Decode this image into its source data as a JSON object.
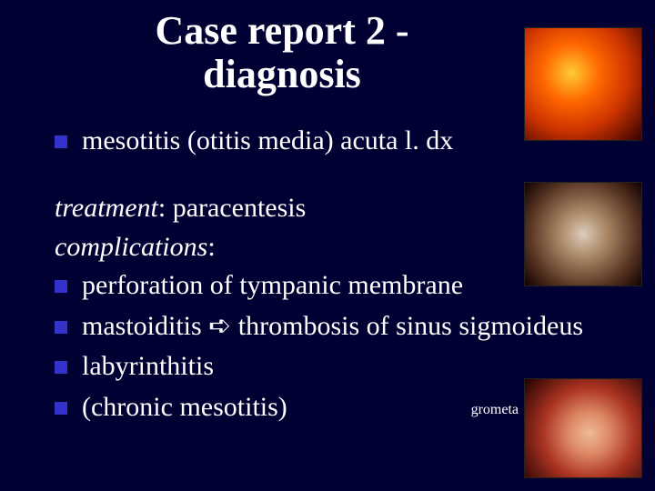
{
  "slide": {
    "background_color": "#000033",
    "text_color": "#ffffff",
    "bullet_color": "#3333cc",
    "title_line1": "Case report 2 -",
    "title_line2": "diagnosis",
    "diagnosis_bullet": "mesotitis (otitis media) acuta l. dx",
    "treatment_label": "treatment",
    "treatment_text": ": paracentesis",
    "complications_label": "complications",
    "complications_colon": ":",
    "comp_items": [
      "perforation of tympanic membrane",
      "mastoiditis ➪ thrombosis of sinus sigmoideus",
      "labyrinthitis",
      "(chronic mesotitis)"
    ],
    "caption_grometa": "grometa",
    "images": [
      {
        "name": "otitis-media-image-1",
        "pos": "top-right"
      },
      {
        "name": "otitis-media-image-2",
        "pos": "mid-right"
      },
      {
        "name": "grommet-image",
        "pos": "bottom-right"
      }
    ]
  }
}
